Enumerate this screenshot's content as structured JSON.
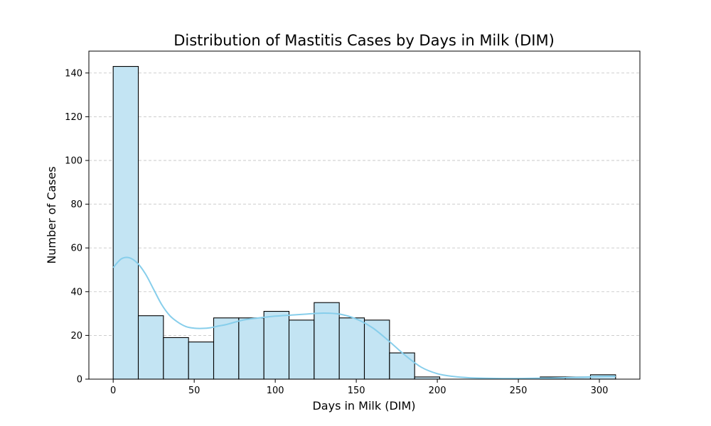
{
  "chart_data": {
    "type": "bar",
    "title": "Distribution of Mastitis Cases by Days in Milk (DIM)",
    "xlabel": "Days in Milk (DIM)",
    "ylabel": "Number of Cases",
    "xlim": [
      -15,
      325
    ],
    "ylim": [
      0,
      150
    ],
    "xticks": [
      0,
      50,
      100,
      150,
      200,
      250,
      300
    ],
    "yticks": [
      0,
      20,
      40,
      60,
      80,
      100,
      120,
      140
    ],
    "grid": "y-dashed",
    "bin_width": 15.5,
    "bins": [
      {
        "start": 0,
        "end": 15.5,
        "count": 143
      },
      {
        "start": 15.5,
        "end": 31,
        "count": 29
      },
      {
        "start": 31,
        "end": 46.5,
        "count": 19
      },
      {
        "start": 46.5,
        "end": 62,
        "count": 17
      },
      {
        "start": 62,
        "end": 77.5,
        "count": 28
      },
      {
        "start": 77.5,
        "end": 93,
        "count": 28
      },
      {
        "start": 93,
        "end": 108.5,
        "count": 31
      },
      {
        "start": 108.5,
        "end": 124,
        "count": 27
      },
      {
        "start": 124,
        "end": 139.5,
        "count": 35
      },
      {
        "start": 139.5,
        "end": 155,
        "count": 28
      },
      {
        "start": 155,
        "end": 170.5,
        "count": 27
      },
      {
        "start": 170.5,
        "end": 186,
        "count": 12
      },
      {
        "start": 186,
        "end": 201.5,
        "count": 1
      },
      {
        "start": 201.5,
        "end": 217,
        "count": 0
      },
      {
        "start": 217,
        "end": 232.5,
        "count": 0
      },
      {
        "start": 232.5,
        "end": 248,
        "count": 0
      },
      {
        "start": 248,
        "end": 263.5,
        "count": 0
      },
      {
        "start": 263.5,
        "end": 279,
        "count": 1
      },
      {
        "start": 279,
        "end": 294.5,
        "count": 1
      },
      {
        "start": 294.5,
        "end": 310,
        "count": 2
      }
    ],
    "kde": {
      "x": [
        0,
        5,
        10,
        15,
        20,
        25,
        30,
        35,
        40,
        45,
        50,
        55,
        60,
        65,
        70,
        80,
        90,
        100,
        110,
        120,
        130,
        140,
        150,
        160,
        170,
        180,
        190,
        200,
        210,
        220,
        230,
        240,
        250,
        260,
        270,
        280,
        290,
        300,
        310
      ],
      "y": [
        51,
        55,
        55.5,
        53,
        48,
        41,
        34,
        29,
        26,
        24,
        23.3,
        23.2,
        23.5,
        24.3,
        25,
        27,
        28,
        28.8,
        29.3,
        29.8,
        30.2,
        29.7,
        27.5,
        23.5,
        17.5,
        11,
        5.5,
        2.5,
        1.2,
        0.6,
        0.4,
        0.3,
        0.3,
        0.4,
        0.5,
        0.7,
        0.9,
        1.2,
        1.3
      ]
    },
    "colors": {
      "bar_fill": "#c3e4f3",
      "bar_edge": "#000000",
      "kde_line": "#87ceeb",
      "grid": "#c8c8c8"
    }
  }
}
